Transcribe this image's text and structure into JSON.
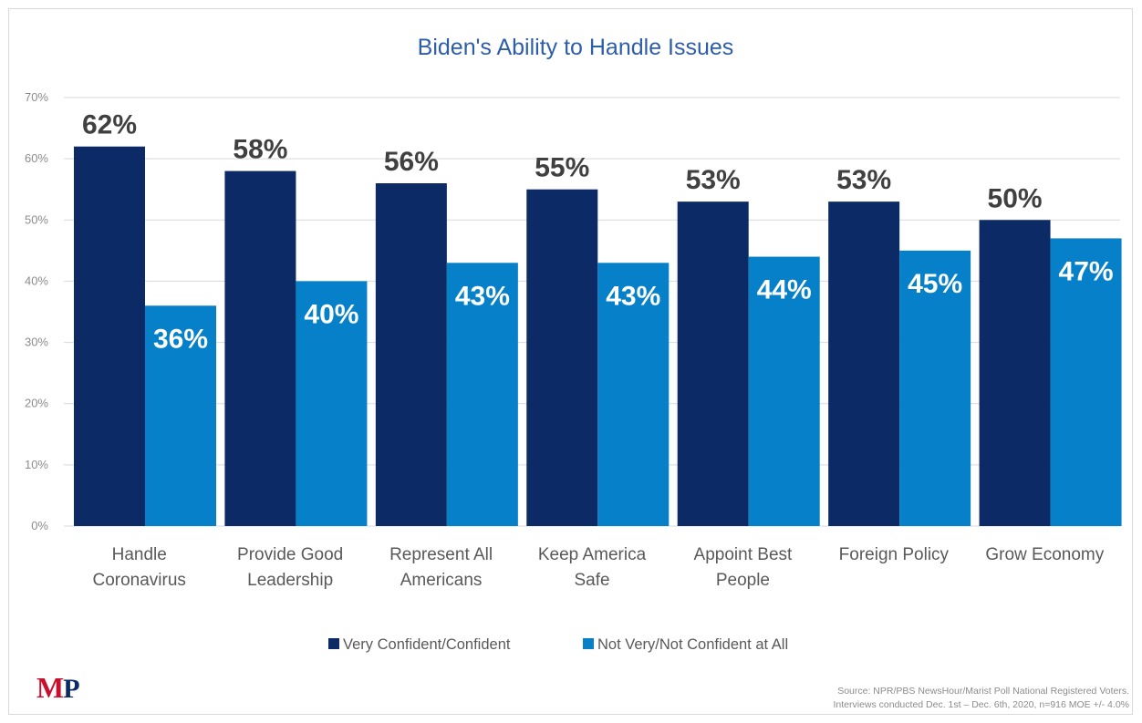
{
  "chart_data": {
    "type": "bar",
    "title": "Biden's Ability to Handle Issues",
    "categories": [
      [
        "Handle",
        "Coronavirus"
      ],
      [
        "Provide Good",
        "Leadership"
      ],
      [
        "Represent All",
        "Americans"
      ],
      [
        "Keep America",
        "Safe"
      ],
      [
        "Appoint Best",
        "People"
      ],
      [
        "Foreign Policy"
      ],
      [
        "Grow Economy"
      ]
    ],
    "series": [
      {
        "name": "Very Confident/Confident",
        "color": "#0b2a66",
        "values": [
          62,
          58,
          56,
          55,
          53,
          53,
          50
        ],
        "labels": [
          "62%",
          "58%",
          "56%",
          "55%",
          "53%",
          "53%",
          "50%"
        ]
      },
      {
        "name": "Not Very/Not Confident at All",
        "color": "#0580c9",
        "values": [
          36,
          40,
          43,
          43,
          44,
          45,
          47
        ],
        "labels": [
          "36%",
          "40%",
          "43%",
          "43%",
          "44%",
          "45%",
          "47%"
        ]
      }
    ],
    "ylim": [
      0,
      70
    ],
    "yticks": [
      "0%",
      "10%",
      "20%",
      "30%",
      "40%",
      "50%",
      "60%",
      "70%"
    ],
    "grid": true,
    "legend": "bottom"
  },
  "logo": {
    "m": "M",
    "p": "P"
  },
  "source": {
    "line1": "Source: NPR/PBS NewsHour/Marist Poll National Registered Voters.",
    "line2": "Interviews conducted Dec. 1st – Dec. 6th, 2020, n=916 MOE +/- 4.0%"
  }
}
